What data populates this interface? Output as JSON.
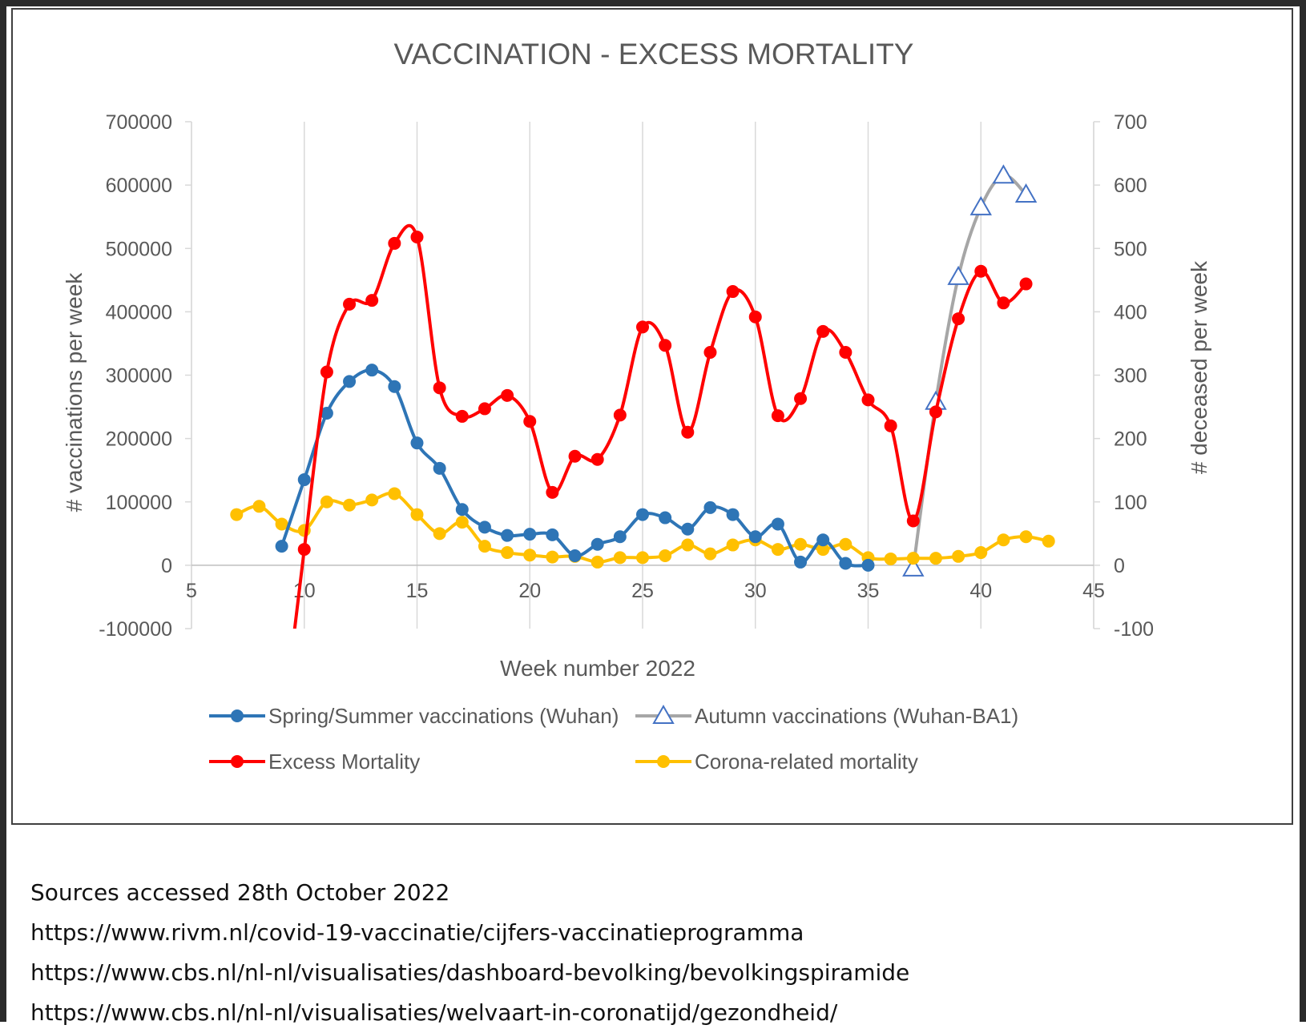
{
  "chart_data": {
    "type": "line",
    "title": "VACCINATION - EXCESS MORTALITY",
    "xlabel": "Week number 2022",
    "ylabel": "# vaccinations per week",
    "y2label": "# deceased per week",
    "xlim": [
      5,
      45
    ],
    "xticks": [
      "5",
      "10",
      "15",
      "20",
      "25",
      "30",
      "35",
      "40",
      "45"
    ],
    "ylim": [
      -100000,
      700000
    ],
    "yticks": [
      "700000",
      "600000",
      "500000",
      "400000",
      "300000",
      "200000",
      "100000",
      "0",
      "-100000"
    ],
    "y2lim": [
      -100,
      700
    ],
    "y2ticks": [
      "700",
      "600",
      "500",
      "400",
      "300",
      "200",
      "100",
      "0",
      "-100"
    ],
    "gridlines": "vertical",
    "series": [
      {
        "name": "Spring/Summer vaccinations (Wuhan)",
        "axis": "left",
        "color": "#2e75b6",
        "marker": "circle",
        "smooth": true,
        "x": [
          9,
          10,
          11,
          12,
          13,
          14,
          15,
          16,
          17,
          18,
          19,
          20,
          21,
          22,
          23,
          24,
          25,
          26,
          27,
          28,
          29,
          30,
          31,
          32,
          33,
          34,
          35
        ],
        "values": [
          30000,
          135000,
          240000,
          290000,
          308000,
          282000,
          193000,
          153000,
          88000,
          60000,
          47000,
          49000,
          48000,
          15000,
          33000,
          45000,
          80000,
          75000,
          57000,
          91000,
          80000,
          45000,
          65000,
          5000,
          40000,
          3000,
          0
        ]
      },
      {
        "name": "Autumn vaccinations (Wuhan-BA1)",
        "axis": "left",
        "color": "#a6a6a6",
        "marker": "triangle",
        "marker_color": "#4472c4",
        "smooth": true,
        "x": [
          37,
          38,
          39,
          40,
          41,
          42
        ],
        "values": [
          -5000,
          258000,
          455000,
          565000,
          615000,
          585000
        ]
      },
      {
        "name": "Excess Mortality",
        "axis": "right",
        "color": "#ff0000",
        "marker": "circle",
        "smooth": true,
        "x": [
          10,
          11,
          12,
          13,
          14,
          15,
          16,
          17,
          18,
          19,
          20,
          21,
          22,
          23,
          24,
          25,
          26,
          27,
          28,
          29,
          30,
          31,
          32,
          33,
          34,
          35,
          36,
          37,
          38,
          39,
          40,
          41,
          42
        ],
        "values": [
          25,
          305,
          412,
          418,
          508,
          518,
          280,
          235,
          247,
          268,
          227,
          115,
          172,
          167,
          237,
          376,
          347,
          210,
          336,
          432,
          392,
          236,
          263,
          369,
          336,
          261,
          220,
          70,
          242,
          389,
          464,
          414,
          444
        ]
      },
      {
        "name": "Corona-related mortality",
        "axis": "right",
        "color": "#ffc000",
        "marker": "circle",
        "smooth": true,
        "x": [
          7,
          8,
          9,
          10,
          11,
          12,
          13,
          14,
          15,
          16,
          17,
          18,
          19,
          20,
          21,
          22,
          23,
          24,
          25,
          26,
          27,
          28,
          29,
          30,
          31,
          32,
          33,
          34,
          35,
          36,
          37,
          38,
          39,
          40,
          41,
          42,
          43
        ],
        "values": [
          80,
          93,
          65,
          55,
          100,
          95,
          103,
          113,
          80,
          50,
          68,
          30,
          20,
          16,
          13,
          14,
          5,
          12,
          12,
          15,
          32,
          18,
          32,
          40,
          25,
          33,
          25,
          33,
          12,
          10,
          11,
          11,
          14,
          20,
          40,
          45,
          38
        ]
      }
    ],
    "legend": [
      {
        "label": "Spring/Summer vaccinations (Wuhan)",
        "color": "#2e75b6",
        "marker": "circle"
      },
      {
        "label": "Autumn vaccinations (Wuhan-BA1)",
        "color": "#a6a6a6",
        "marker": "triangle",
        "marker_color": "#4472c4"
      },
      {
        "label": "Excess Mortality",
        "color": "#ff0000",
        "marker": "circle"
      },
      {
        "label": "Corona-related mortality",
        "color": "#ffc000",
        "marker": "circle"
      }
    ],
    "legend_position": "bottom"
  },
  "sources": {
    "heading": "Sources accessed 28th  October 2022",
    "links": [
      "https://www.rivm.nl/covid-19-vaccinatie/cijfers-vaccinatieprogramma",
      "https://www.cbs.nl/nl-nl/visualisaties/dashboard-bevolking/bevolkingspiramide",
      "https://www.cbs.nl/nl-nl/visualisaties/welvaart-in-coronatijd/gezondheid/"
    ]
  }
}
